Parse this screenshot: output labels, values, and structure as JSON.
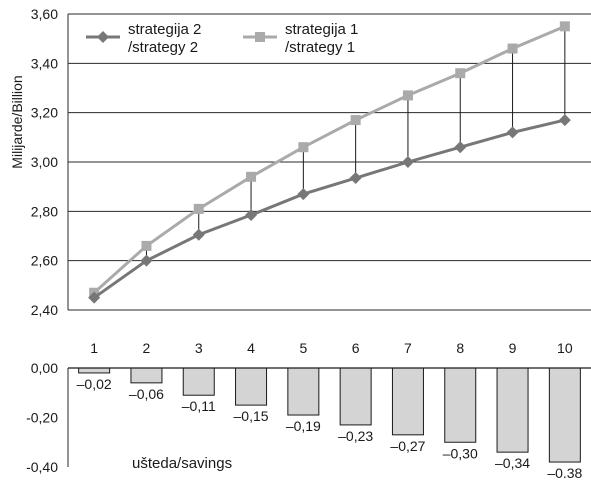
{
  "chart_data": [
    {
      "type": "line",
      "ylabel": "Milijarde/Billion",
      "ylim": [
        2.4,
        3.6
      ],
      "y_ticks": [
        "2,40",
        "2,60",
        "2,80",
        "3,00",
        "3,20",
        "3,40",
        "3,60"
      ],
      "grid": true,
      "legend_position": "top-left",
      "x": [
        1,
        2,
        3,
        4,
        5,
        6,
        7,
        8,
        9,
        10
      ],
      "series": [
        {
          "name_line1": "strategija 2",
          "name_line2": "/strategy 2",
          "marker": "diamond",
          "color": "#777777",
          "values": [
            2.45,
            2.6,
            2.705,
            2.785,
            2.87,
            2.935,
            3.0,
            3.06,
            3.12,
            3.17
          ]
        },
        {
          "name_line1": "strategija 1",
          "name_line2": "/strategy 1",
          "marker": "square",
          "color": "#aaaaaa",
          "values": [
            2.47,
            2.66,
            2.81,
            2.94,
            3.06,
            3.17,
            3.27,
            3.36,
            3.46,
            3.55
          ]
        }
      ]
    },
    {
      "type": "bar",
      "categories": [
        "1",
        "2",
        "3",
        "4",
        "5",
        "6",
        "7",
        "8",
        "9",
        "10"
      ],
      "values": [
        -0.02,
        -0.06,
        -0.11,
        -0.15,
        -0.19,
        -0.23,
        -0.27,
        -0.3,
        -0.34,
        -0.38
      ],
      "data_labels": [
        "–0,02",
        "–0,06",
        "–0,11",
        "–0,15",
        "–0,19",
        "–0,23",
        "–0,27",
        "–0,30",
        "–0,34",
        "–0.38"
      ],
      "ylim": [
        -0.4,
        0.0
      ],
      "y_ticks": [
        "0,00",
        "-0,20",
        "-0,40"
      ],
      "annotation": "ušteda/savings",
      "bar_color": "#d4d4d4"
    }
  ]
}
